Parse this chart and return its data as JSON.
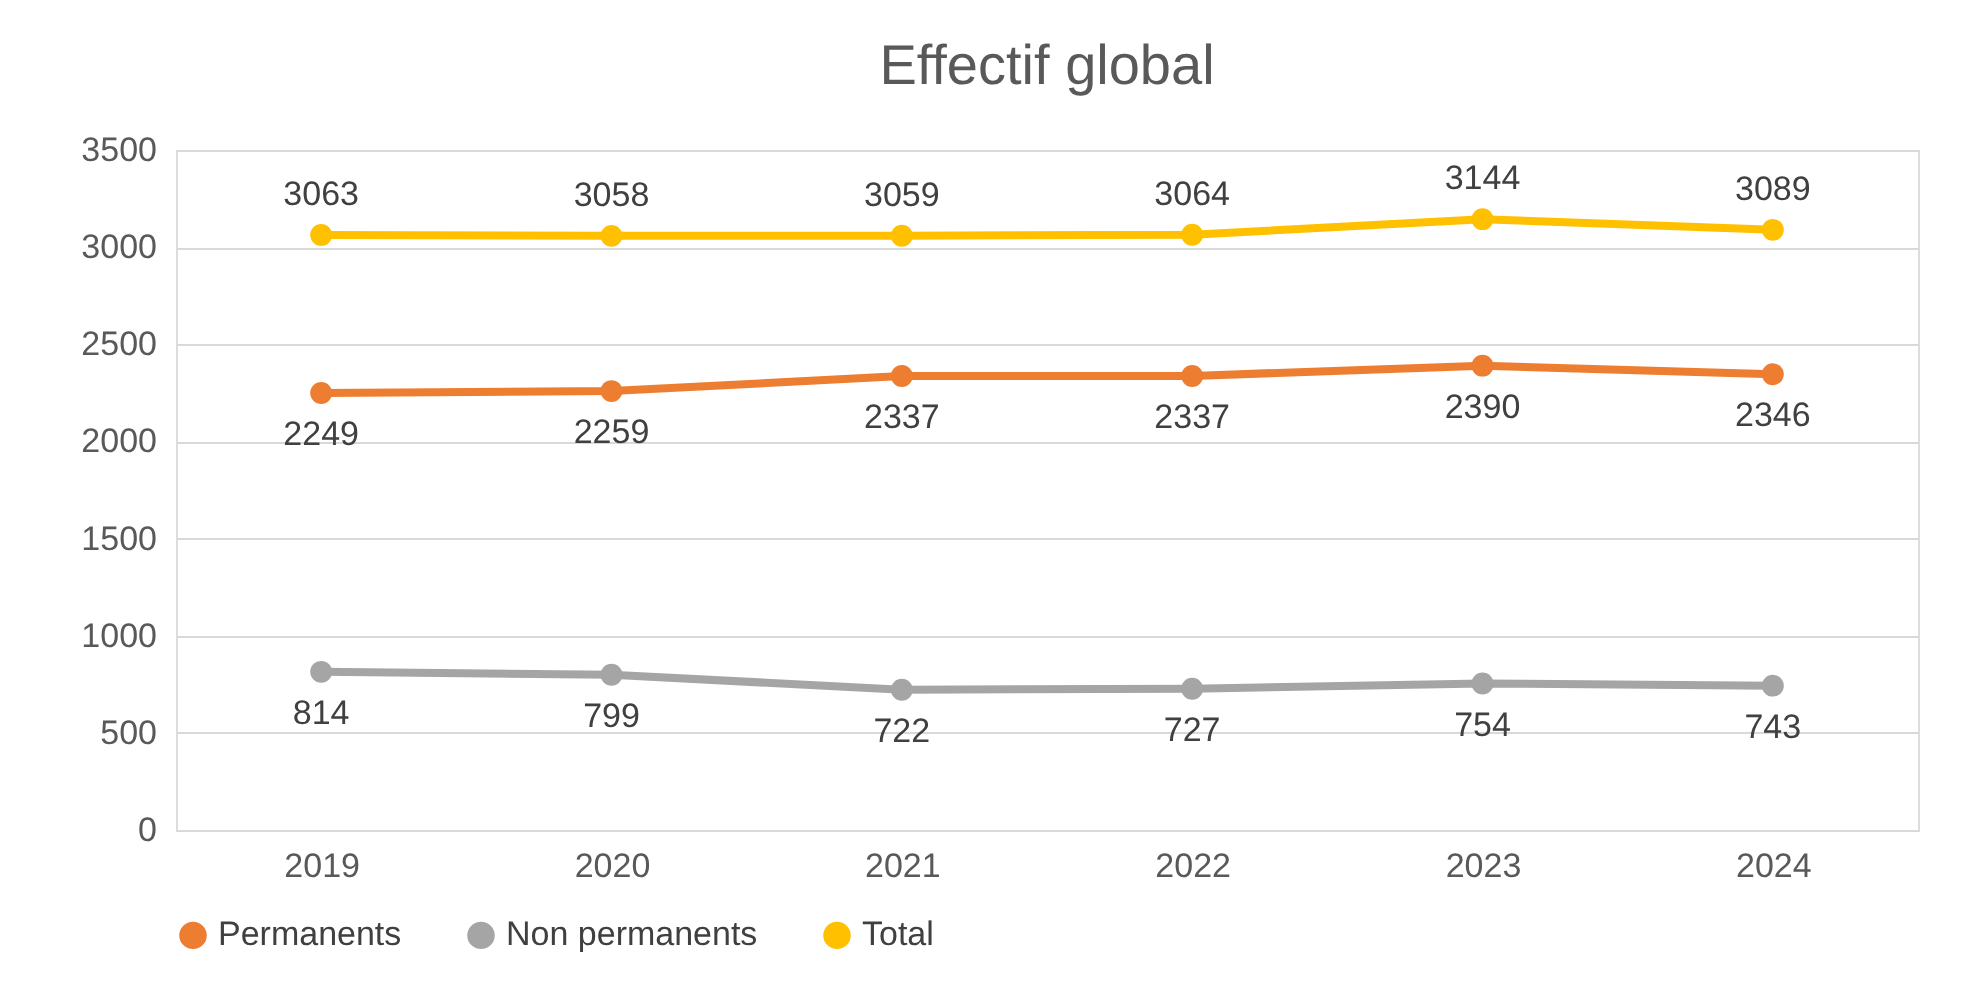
{
  "chart_data": {
    "type": "line",
    "title": "Effectif global",
    "categories": [
      "2019",
      "2020",
      "2021",
      "2022",
      "2023",
      "2024"
    ],
    "series": [
      {
        "name": "Permanents",
        "color": "#ed7d31",
        "values": [
          2249,
          2259,
          2337,
          2337,
          2390,
          2346
        ]
      },
      {
        "name": "Non permanents",
        "color": "#a5a5a5",
        "values": [
          814,
          799,
          722,
          727,
          754,
          743
        ]
      },
      {
        "name": "Total",
        "color": "#ffc000",
        "values": [
          3063,
          3058,
          3059,
          3064,
          3144,
          3089
        ]
      }
    ],
    "ylim": [
      0,
      3500
    ],
    "yticks": [
      0,
      500,
      1000,
      1500,
      2000,
      2500,
      3000,
      3500
    ],
    "grid": "y",
    "legend": "bottom",
    "marker": "circle",
    "line_style": "solid",
    "data_labels": true
  }
}
